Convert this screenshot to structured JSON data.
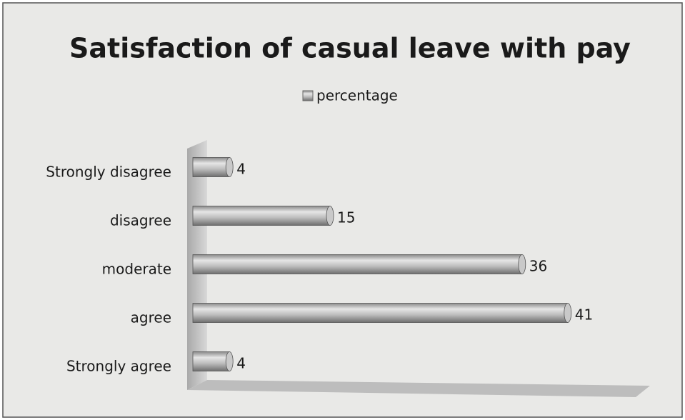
{
  "chart_data": {
    "type": "bar",
    "orientation": "horizontal",
    "title": "Satisfaction of casual leave with pay",
    "categories": [
      "Strongly disagree",
      "disagree",
      "moderate",
      "agree",
      "Strongly agree"
    ],
    "series": [
      {
        "name": "percentage",
        "color": "#b8b8b8",
        "values": [
          4,
          15,
          36,
          41,
          4
        ]
      }
    ],
    "xlim": [
      0,
      50
    ],
    "legend": "top"
  }
}
